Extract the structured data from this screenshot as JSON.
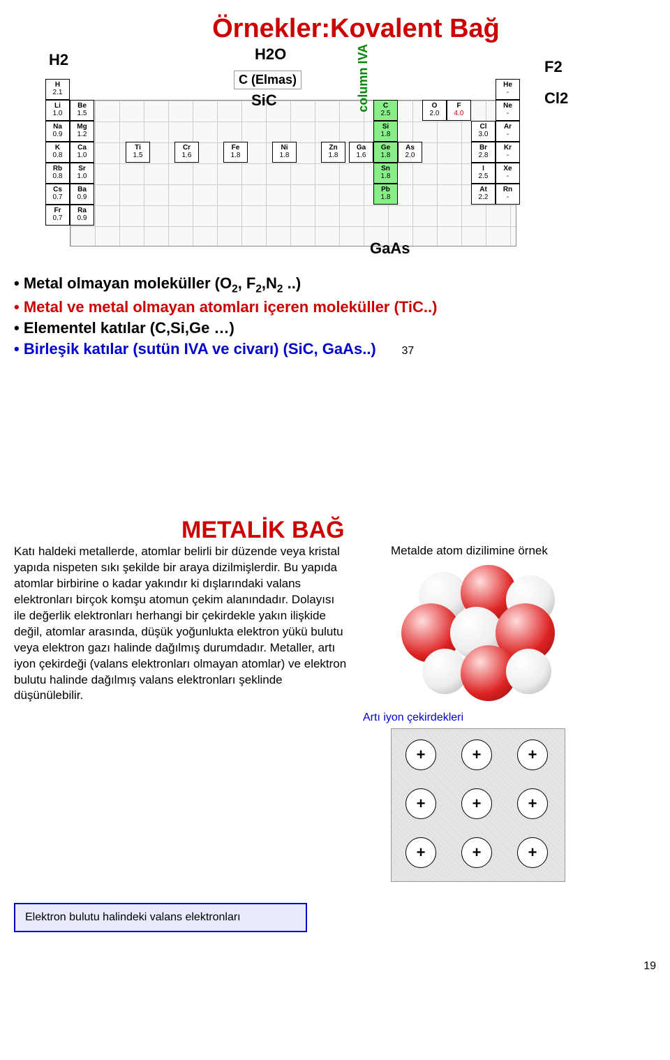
{
  "slide1": {
    "title": "Örnekler:Kovalent Bağ",
    "annotations": {
      "H2": "H2",
      "H2O": "H2O",
      "C_diamond": "C (Elmas)",
      "SiC": "SiC",
      "column_iva": "column IVA",
      "F2": "F2",
      "Cl2": "Cl2",
      "GaAs": "GaAs"
    },
    "left_col_1": [
      {
        "el": "H",
        "en": "2.1"
      },
      {
        "el": "Li",
        "en": "1.0"
      },
      {
        "el": "Na",
        "en": "0.9"
      },
      {
        "el": "K",
        "en": "0.8"
      },
      {
        "el": "Rb",
        "en": "0.8"
      },
      {
        "el": "Cs",
        "en": "0.7"
      },
      {
        "el": "Fr",
        "en": "0.7"
      }
    ],
    "left_col_2": [
      {
        "el": "Be",
        "en": "1.5"
      },
      {
        "el": "Mg",
        "en": "1.2"
      },
      {
        "el": "Ca",
        "en": "1.0"
      },
      {
        "el": "Sr",
        "en": "1.0"
      },
      {
        "el": "Ba",
        "en": "0.9"
      },
      {
        "el": "Ra",
        "en": "0.9"
      }
    ],
    "trans_row": [
      {
        "el": "Ti",
        "en": "1.5"
      },
      {
        "el": "Cr",
        "en": "1.6"
      },
      {
        "el": "Fe",
        "en": "1.8"
      },
      {
        "el": "Ni",
        "en": "1.8"
      },
      {
        "el": "Zn",
        "en": "1.8"
      }
    ],
    "iva_col": [
      {
        "el": "C",
        "en": "2.5"
      },
      {
        "el": "Si",
        "en": "1.8"
      },
      {
        "el": "Ge",
        "en": "1.8"
      },
      {
        "el": "Sn",
        "en": "1.8"
      },
      {
        "el": "Pb",
        "en": "1.8"
      }
    ],
    "ga": {
      "el": "Ga",
      "en": "1.6"
    },
    "as": {
      "el": "As",
      "en": "2.0"
    },
    "o_row": {
      "el": "O",
      "en": "2.0"
    },
    "f_cell": {
      "el": "F",
      "en": "4.0"
    },
    "right_col_17": [
      {
        "el": "Cl",
        "en": "3.0"
      },
      {
        "el": "Br",
        "en": "2.8"
      },
      {
        "el": "I",
        "en": "2.5"
      },
      {
        "el": "At",
        "en": "2.2"
      }
    ],
    "right_col_18": [
      {
        "el": "He",
        "en": "-"
      },
      {
        "el": "Ne",
        "en": "-"
      },
      {
        "el": "Ar",
        "en": "-"
      },
      {
        "el": "Kr",
        "en": "-"
      },
      {
        "el": "Xe",
        "en": "-"
      },
      {
        "el": "Rn",
        "en": "-"
      }
    ],
    "bullets": {
      "b1_pre": "• Metal olmayan moleküller (O",
      "b1_mid1": ", F",
      "b1_mid2": ",N",
      "b1_post": " ..)",
      "b2": "• Metal ve metal olmayan atomları içeren moleküller (TiC..)",
      "b3": "• Elementel katılar  (C,Si,Ge …)",
      "b4": "• Birleşik katılar (sutün IVA ve civarı) (SiC, GaAs..)"
    },
    "page": "37"
  },
  "slide2": {
    "title": "METALİK BAĞ",
    "paragraph": "Katı haldeki metallerde, atomlar belirli bir düzende veya kristal yapıda nispeten sıkı şekilde bir araya dizilmişlerdir. Bu yapıda atomlar birbirine o kadar yakındır ki dışlarındaki valans elektronları birçok komşu atomun çekim alanındadır. Dolayısı ile değerlik elektronları herhangi bir çekirdekle yakın ilişkide değil, atomlar arasında, düşük yoğunlukta elektron yükü bulutu veya elektron gazı halinde dağılmış durumdadır.\nMetaller, artı iyon çekirdeği (valans elektronları olmayan atomlar) ve elektron bulutu halinde dağılmış valans elektronları şeklinde düşünülebilir.",
    "caption_atom": "Metalde atom dizilimine örnek",
    "caption_ion": "Artı iyon çekirdekleri",
    "electron_box": "Elektron bulutu halindeki valans elektronları",
    "ion_sign": "+",
    "footer": "19"
  }
}
